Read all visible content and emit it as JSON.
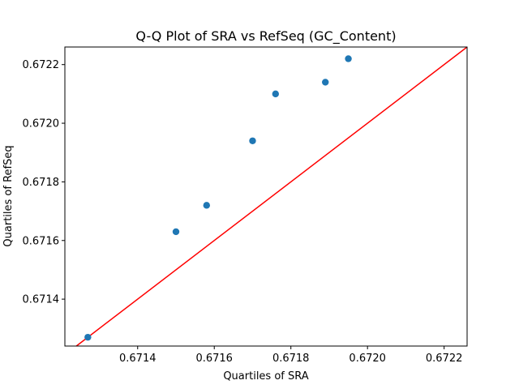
{
  "chart_data": {
    "type": "scatter",
    "title": "Q-Q Plot of SRA vs RefSeq (GC_Content)",
    "xlabel": "Quartiles of SRA",
    "ylabel": "Quartiles of RefSeq",
    "xlim": [
      0.67121,
      0.67226
    ],
    "ylim": [
      0.67124,
      0.67226
    ],
    "xticks": [
      "0.6714",
      "0.6716",
      "0.6718",
      "0.6720",
      "0.6722"
    ],
    "yticks": [
      "0.6714",
      "0.6716",
      "0.6718",
      "0.6720",
      "0.6722"
    ],
    "grid": false,
    "points": [
      {
        "x": 0.67127,
        "y": 0.67127
      },
      {
        "x": 0.6715,
        "y": 0.67163
      },
      {
        "x": 0.67158,
        "y": 0.67172
      },
      {
        "x": 0.6717,
        "y": 0.67194
      },
      {
        "x": 0.67176,
        "y": 0.6721
      },
      {
        "x": 0.67189,
        "y": 0.67214
      },
      {
        "x": 0.67195,
        "y": 0.67222
      }
    ],
    "reference_line": {
      "type": "y=x",
      "color": "#ff0000"
    },
    "marker_color": "#1f77b4"
  }
}
